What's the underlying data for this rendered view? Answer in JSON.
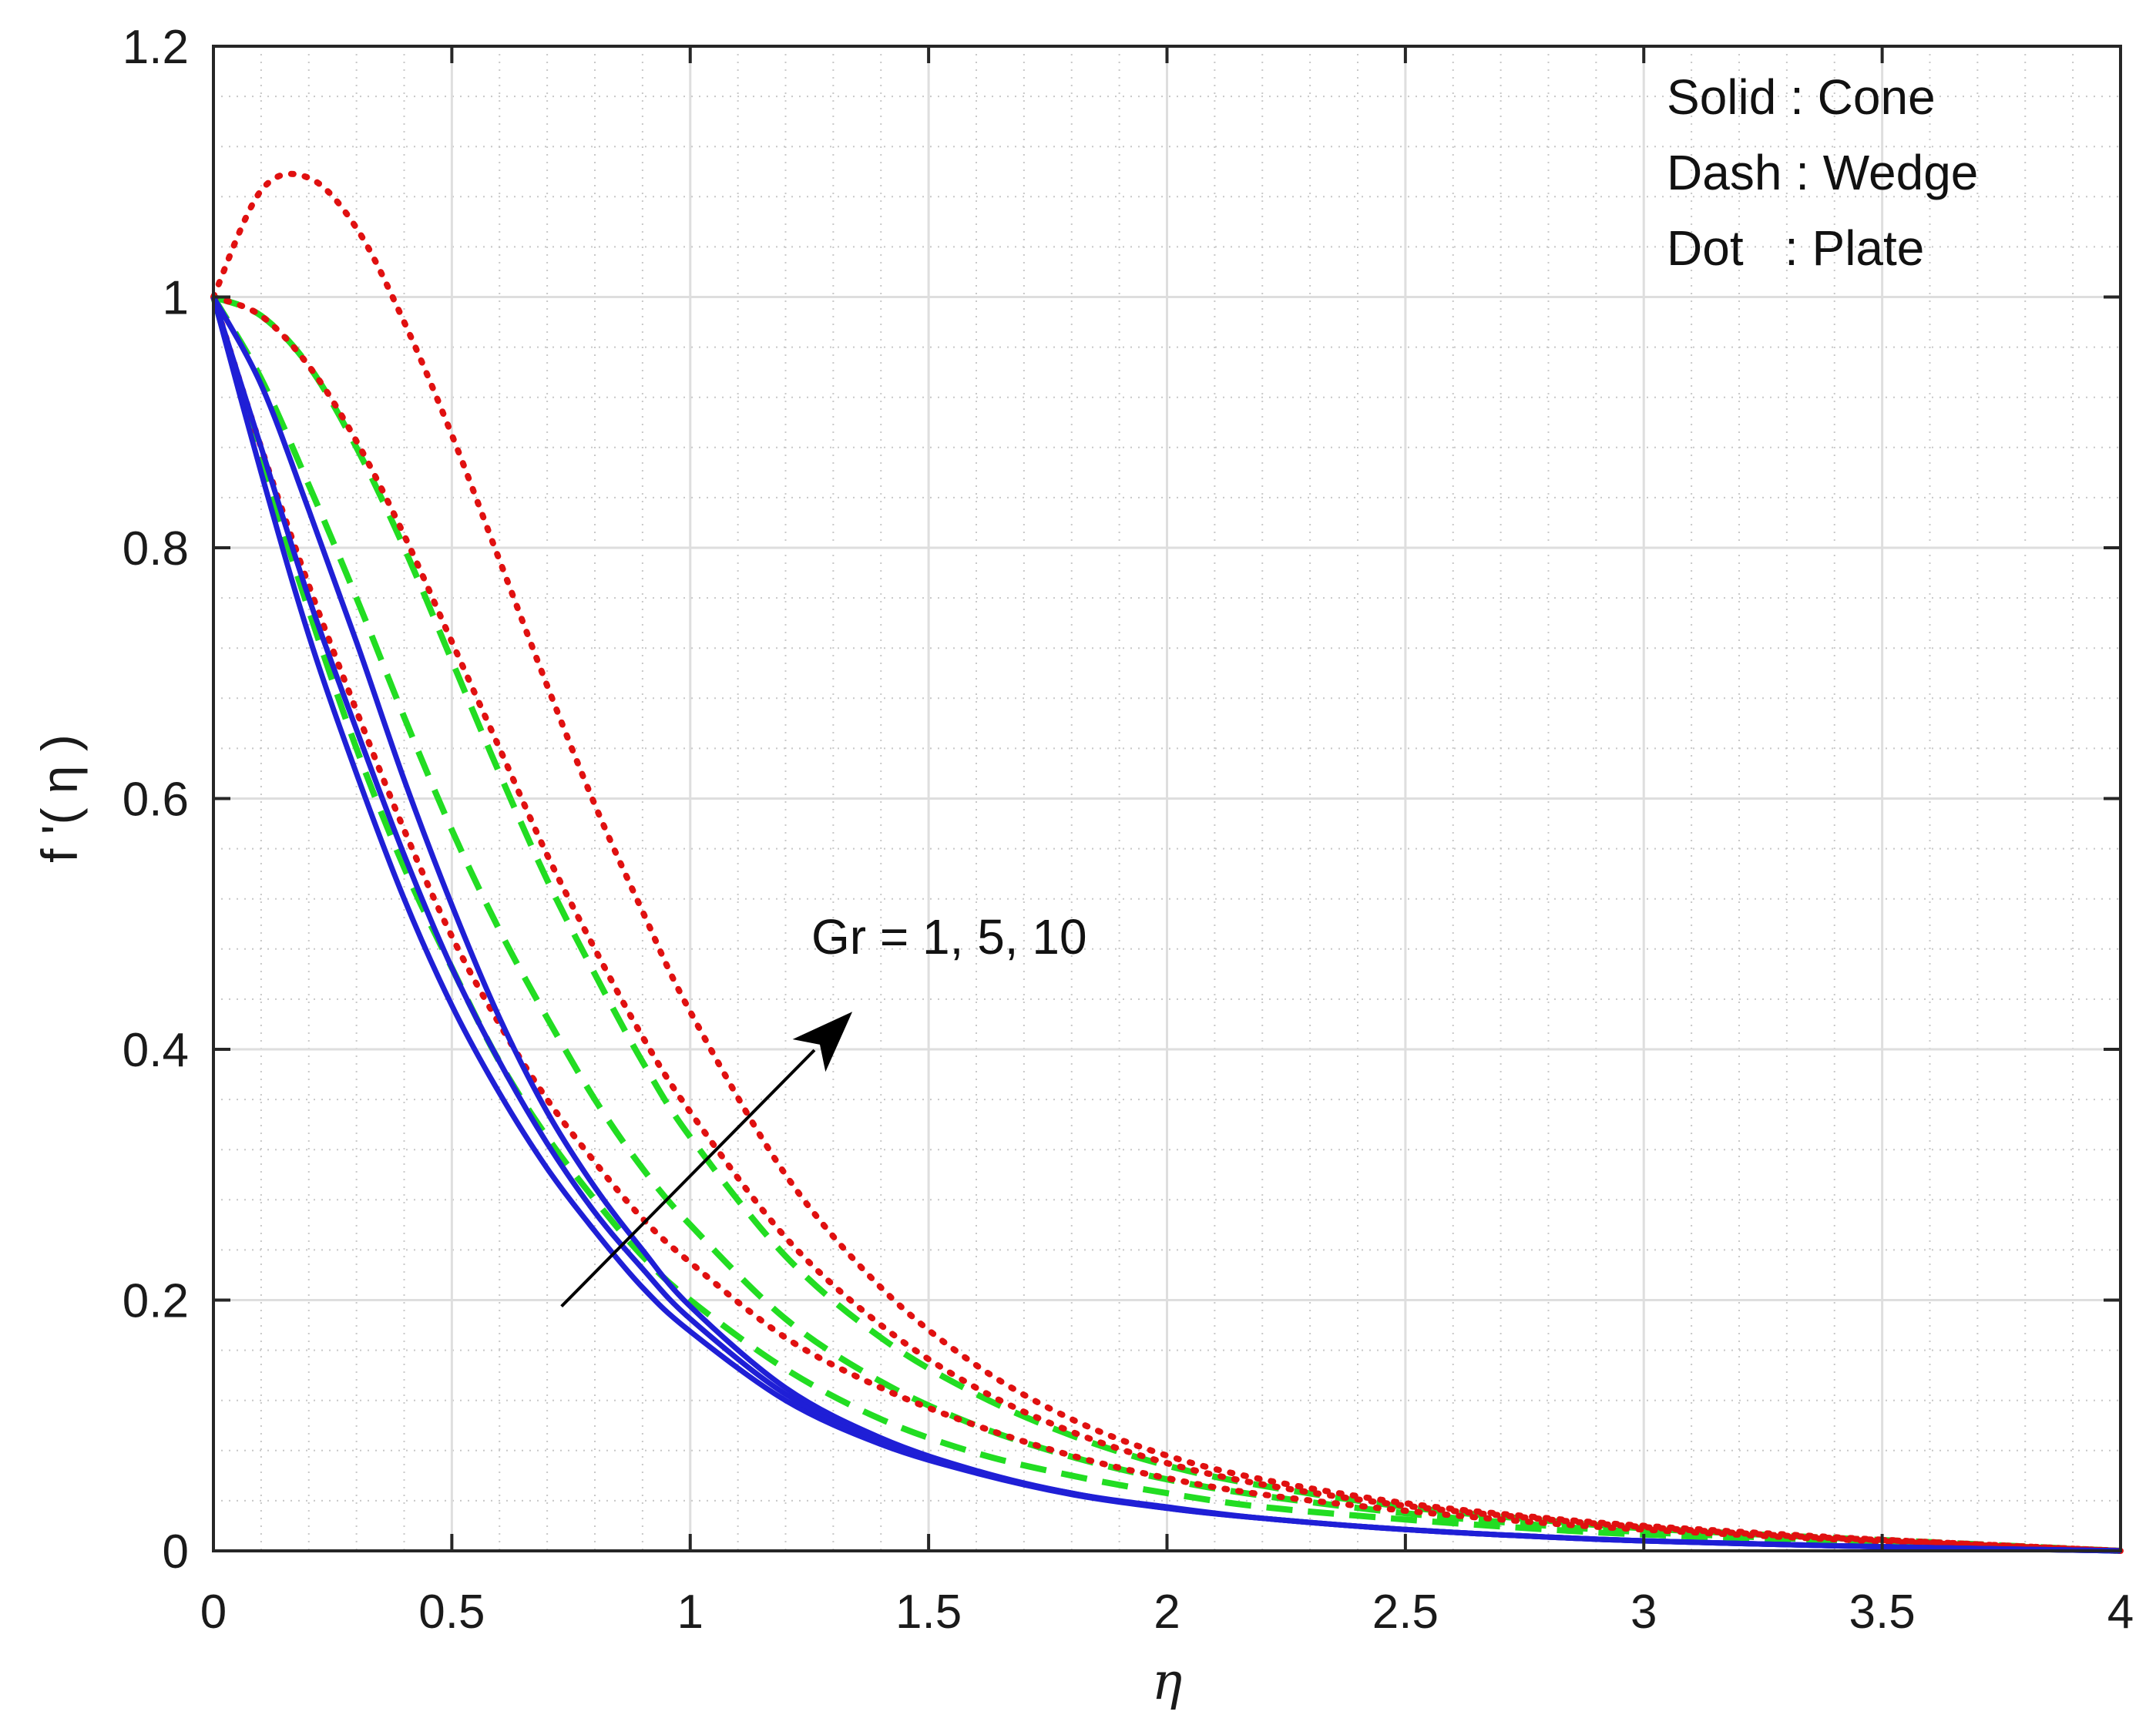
{
  "chart_data": {
    "type": "line",
    "title": "",
    "xlabel": "η",
    "ylabel": "f '( η )",
    "xlim": [
      0,
      4
    ],
    "ylim": [
      0,
      1.2
    ],
    "xticks": [
      0,
      0.5,
      1,
      1.5,
      2,
      2.5,
      3,
      3.5,
      4
    ],
    "xtick_labels": [
      "0",
      "0.5",
      "1",
      "1.5",
      "2",
      "2.5",
      "3",
      "3.5",
      "4"
    ],
    "yticks": [
      0,
      0.2,
      0.4,
      0.6,
      0.8,
      1,
      1.2
    ],
    "ytick_labels": [
      "0",
      "0.2",
      "0.4",
      "0.6",
      "0.8",
      "1",
      "1.2"
    ],
    "grid": true,
    "minor_grid": true,
    "legend": {
      "placement": "top-right",
      "entries": [
        "Solid : Cone",
        "Dash : Wedge",
        "Dot   : Plate"
      ]
    },
    "annotation": {
      "text": "Gr = 1, 5, 10",
      "arrow_from": [
        0.73,
        0.195
      ],
      "arrow_to": [
        1.34,
        0.43
      ]
    },
    "colors": {
      "cone": "#1f1fd6",
      "wedge": "#22dd22",
      "plate": "#e01010"
    },
    "x": [
      0,
      0.1,
      0.2,
      0.3,
      0.4,
      0.5,
      0.6,
      0.7,
      0.8,
      0.9,
      1.0,
      1.2,
      1.4,
      1.6,
      1.8,
      2.0,
      2.2,
      2.5,
      2.8,
      3.0,
      3.3,
      3.6,
      4.0
    ],
    "series": [
      {
        "name": "Cone, Gr = 1",
        "style": "solid",
        "geometry": "cone",
        "values": [
          1.0,
          0.86,
          0.73,
          0.62,
          0.52,
          0.435,
          0.365,
          0.305,
          0.255,
          0.21,
          0.175,
          0.12,
          0.085,
          0.062,
          0.045,
          0.034,
          0.026,
          0.017,
          0.011,
          0.008,
          0.005,
          0.0025,
          0.0
        ]
      },
      {
        "name": "Cone, Gr = 5",
        "style": "solid",
        "geometry": "cone",
        "values": [
          1.0,
          0.88,
          0.76,
          0.655,
          0.555,
          0.465,
          0.39,
          0.325,
          0.27,
          0.225,
          0.185,
          0.125,
          0.088,
          0.063,
          0.046,
          0.034,
          0.026,
          0.017,
          0.011,
          0.008,
          0.005,
          0.0025,
          0.0
        ]
      },
      {
        "name": "Cone, Gr = 10",
        "style": "solid",
        "geometry": "cone",
        "values": [
          1.0,
          0.93,
          0.83,
          0.725,
          0.615,
          0.515,
          0.425,
          0.35,
          0.29,
          0.24,
          0.195,
          0.13,
          0.09,
          0.064,
          0.046,
          0.035,
          0.026,
          0.017,
          0.011,
          0.008,
          0.005,
          0.0025,
          0.0
        ]
      },
      {
        "name": "Wedge, Gr = 1",
        "style": "dash",
        "geometry": "wedge",
        "values": [
          1.0,
          0.87,
          0.75,
          0.64,
          0.545,
          0.465,
          0.39,
          0.33,
          0.28,
          0.235,
          0.2,
          0.145,
          0.105,
          0.078,
          0.06,
          0.046,
          0.035,
          0.025,
          0.017,
          0.013,
          0.009,
          0.005,
          0.0
        ]
      },
      {
        "name": "Wedge, Gr = 5",
        "style": "dash",
        "geometry": "wedge",
        "values": [
          1.0,
          0.935,
          0.85,
          0.76,
          0.665,
          0.575,
          0.495,
          0.425,
          0.36,
          0.305,
          0.26,
          0.185,
          0.135,
          0.1,
          0.075,
          0.057,
          0.044,
          0.03,
          0.02,
          0.015,
          0.01,
          0.006,
          0.0
        ]
      },
      {
        "name": "Wedge, Gr = 10",
        "style": "dash",
        "geometry": "wedge",
        "values": [
          1.0,
          0.985,
          0.945,
          0.88,
          0.8,
          0.71,
          0.62,
          0.535,
          0.46,
          0.39,
          0.33,
          0.235,
          0.17,
          0.125,
          0.092,
          0.068,
          0.052,
          0.035,
          0.024,
          0.018,
          0.012,
          0.007,
          0.0
        ]
      },
      {
        "name": "Plate, Gr = 1",
        "style": "dot",
        "geometry": "plate",
        "values": [
          1.0,
          0.88,
          0.77,
          0.67,
          0.575,
          0.49,
          0.42,
          0.36,
          0.31,
          0.265,
          0.23,
          0.17,
          0.13,
          0.1,
          0.076,
          0.058,
          0.045,
          0.032,
          0.022,
          0.017,
          0.011,
          0.006,
          0.0
        ]
      },
      {
        "name": "Plate, Gr = 5",
        "style": "dot",
        "geometry": "plate",
        "values": [
          1.0,
          0.985,
          0.945,
          0.885,
          0.81,
          0.725,
          0.64,
          0.555,
          0.48,
          0.41,
          0.35,
          0.25,
          0.18,
          0.13,
          0.095,
          0.07,
          0.053,
          0.036,
          0.025,
          0.019,
          0.012,
          0.007,
          0.0
        ]
      },
      {
        "name": "Plate, Gr = 10",
        "style": "dot",
        "geometry": "plate",
        "values": [
          1.0,
          1.085,
          1.095,
          1.055,
          0.98,
          0.89,
          0.79,
          0.69,
          0.595,
          0.51,
          0.43,
          0.3,
          0.21,
          0.148,
          0.105,
          0.076,
          0.057,
          0.038,
          0.026,
          0.02,
          0.013,
          0.007,
          0.0
        ]
      }
    ]
  }
}
